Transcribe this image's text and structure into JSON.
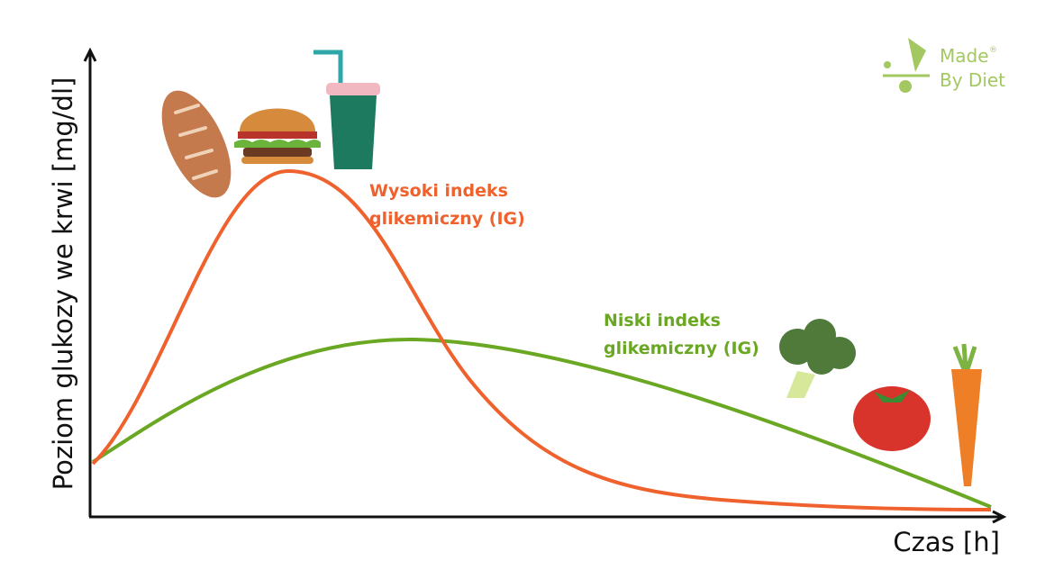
{
  "axes": {
    "y_label": "Poziom glukozy we krwi [mg/dl]",
    "x_label": "Czas [h]"
  },
  "curves": [
    {
      "label_lines": [
        "Wysoki indeks",
        "glikemiczny (IG)"
      ]
    },
    {
      "label_lines": [
        "Niski indeks",
        "glikemiczny (IG)"
      ]
    }
  ],
  "logo": {
    "line1": "Made",
    "mark": "®",
    "line2": "By Diet"
  }
}
